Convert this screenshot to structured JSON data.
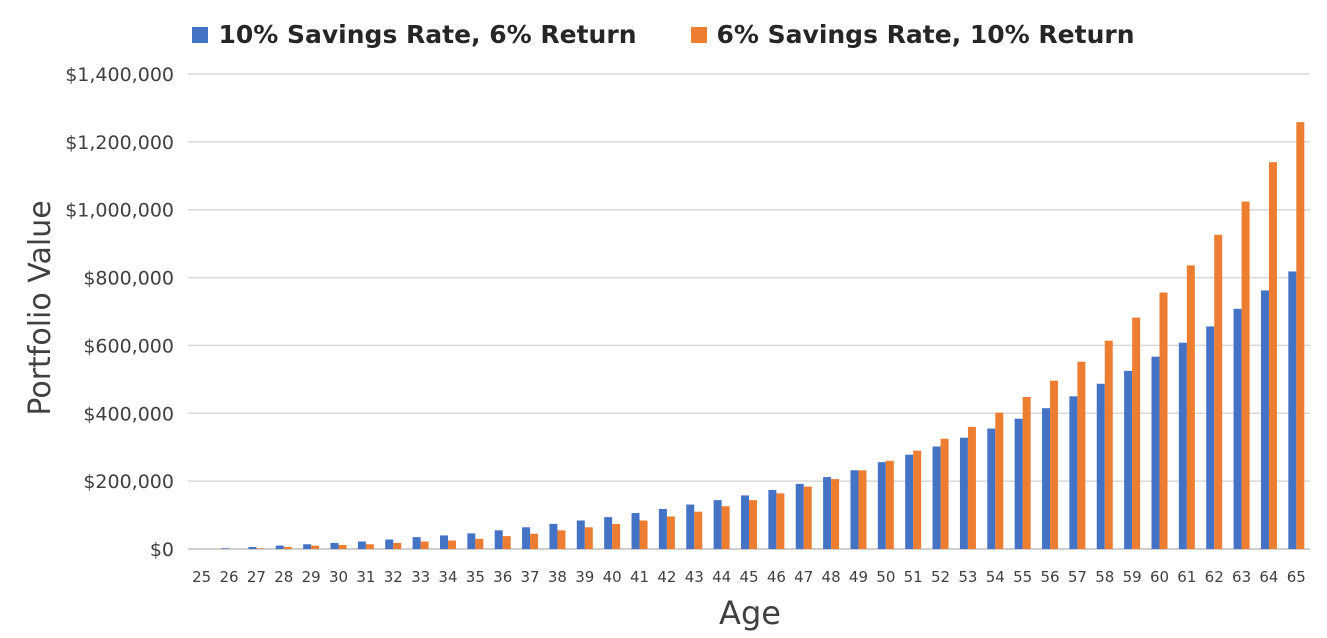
{
  "chart_data": {
    "type": "bar",
    "title": "",
    "xlabel": "Age",
    "ylabel": "Portfolio Value",
    "ylim": [
      0,
      1400000
    ],
    "yticks": [
      0,
      200000,
      400000,
      600000,
      800000,
      1000000,
      1200000,
      1400000
    ],
    "ytick_labels": [
      "$0",
      "$200,000",
      "$400,000",
      "$600,000",
      "$800,000",
      "$1,000,000",
      "$1,200,000",
      "$1,400,000"
    ],
    "grid": true,
    "legend_position": "top",
    "categories": [
      "25",
      "26",
      "27",
      "28",
      "29",
      "30",
      "31",
      "32",
      "33",
      "34",
      "35",
      "36",
      "37",
      "38",
      "39",
      "40",
      "41",
      "42",
      "43",
      "44",
      "45",
      "46",
      "47",
      "48",
      "49",
      "50",
      "51",
      "52",
      "53",
      "54",
      "55",
      "56",
      "57",
      "58",
      "59",
      "60",
      "61",
      "62",
      "63",
      "64",
      "65"
    ],
    "series": [
      {
        "name": "10% Savings Rate, 6% Return",
        "color": "#4472c4",
        "values": [
          0,
          2000,
          6000,
          10000,
          14000,
          18000,
          22000,
          28000,
          35000,
          40000,
          46000,
          55000,
          64000,
          74000,
          84000,
          94000,
          106000,
          118000,
          131000,
          144000,
          158000,
          174000,
          192000,
          212000,
          232000,
          256000,
          278000,
          302000,
          328000,
          355000,
          384000,
          415000,
          450000,
          487000,
          525000,
          567000,
          608000,
          656000,
          708000,
          762000,
          818000
        ]
      },
      {
        "name": "6% Savings Rate, 10% Return",
        "color": "#ed7d31",
        "values": [
          0,
          0,
          2000,
          6000,
          10000,
          12000,
          14000,
          18000,
          22000,
          25000,
          30000,
          38000,
          45000,
          55000,
          64000,
          74000,
          84000,
          96000,
          110000,
          126000,
          144000,
          164000,
          184000,
          206000,
          232000,
          260000,
          290000,
          325000,
          360000,
          402000,
          448000,
          496000,
          552000,
          614000,
          682000,
          756000,
          836000,
          926000,
          1024000,
          1140000,
          1258000
        ]
      }
    ]
  }
}
